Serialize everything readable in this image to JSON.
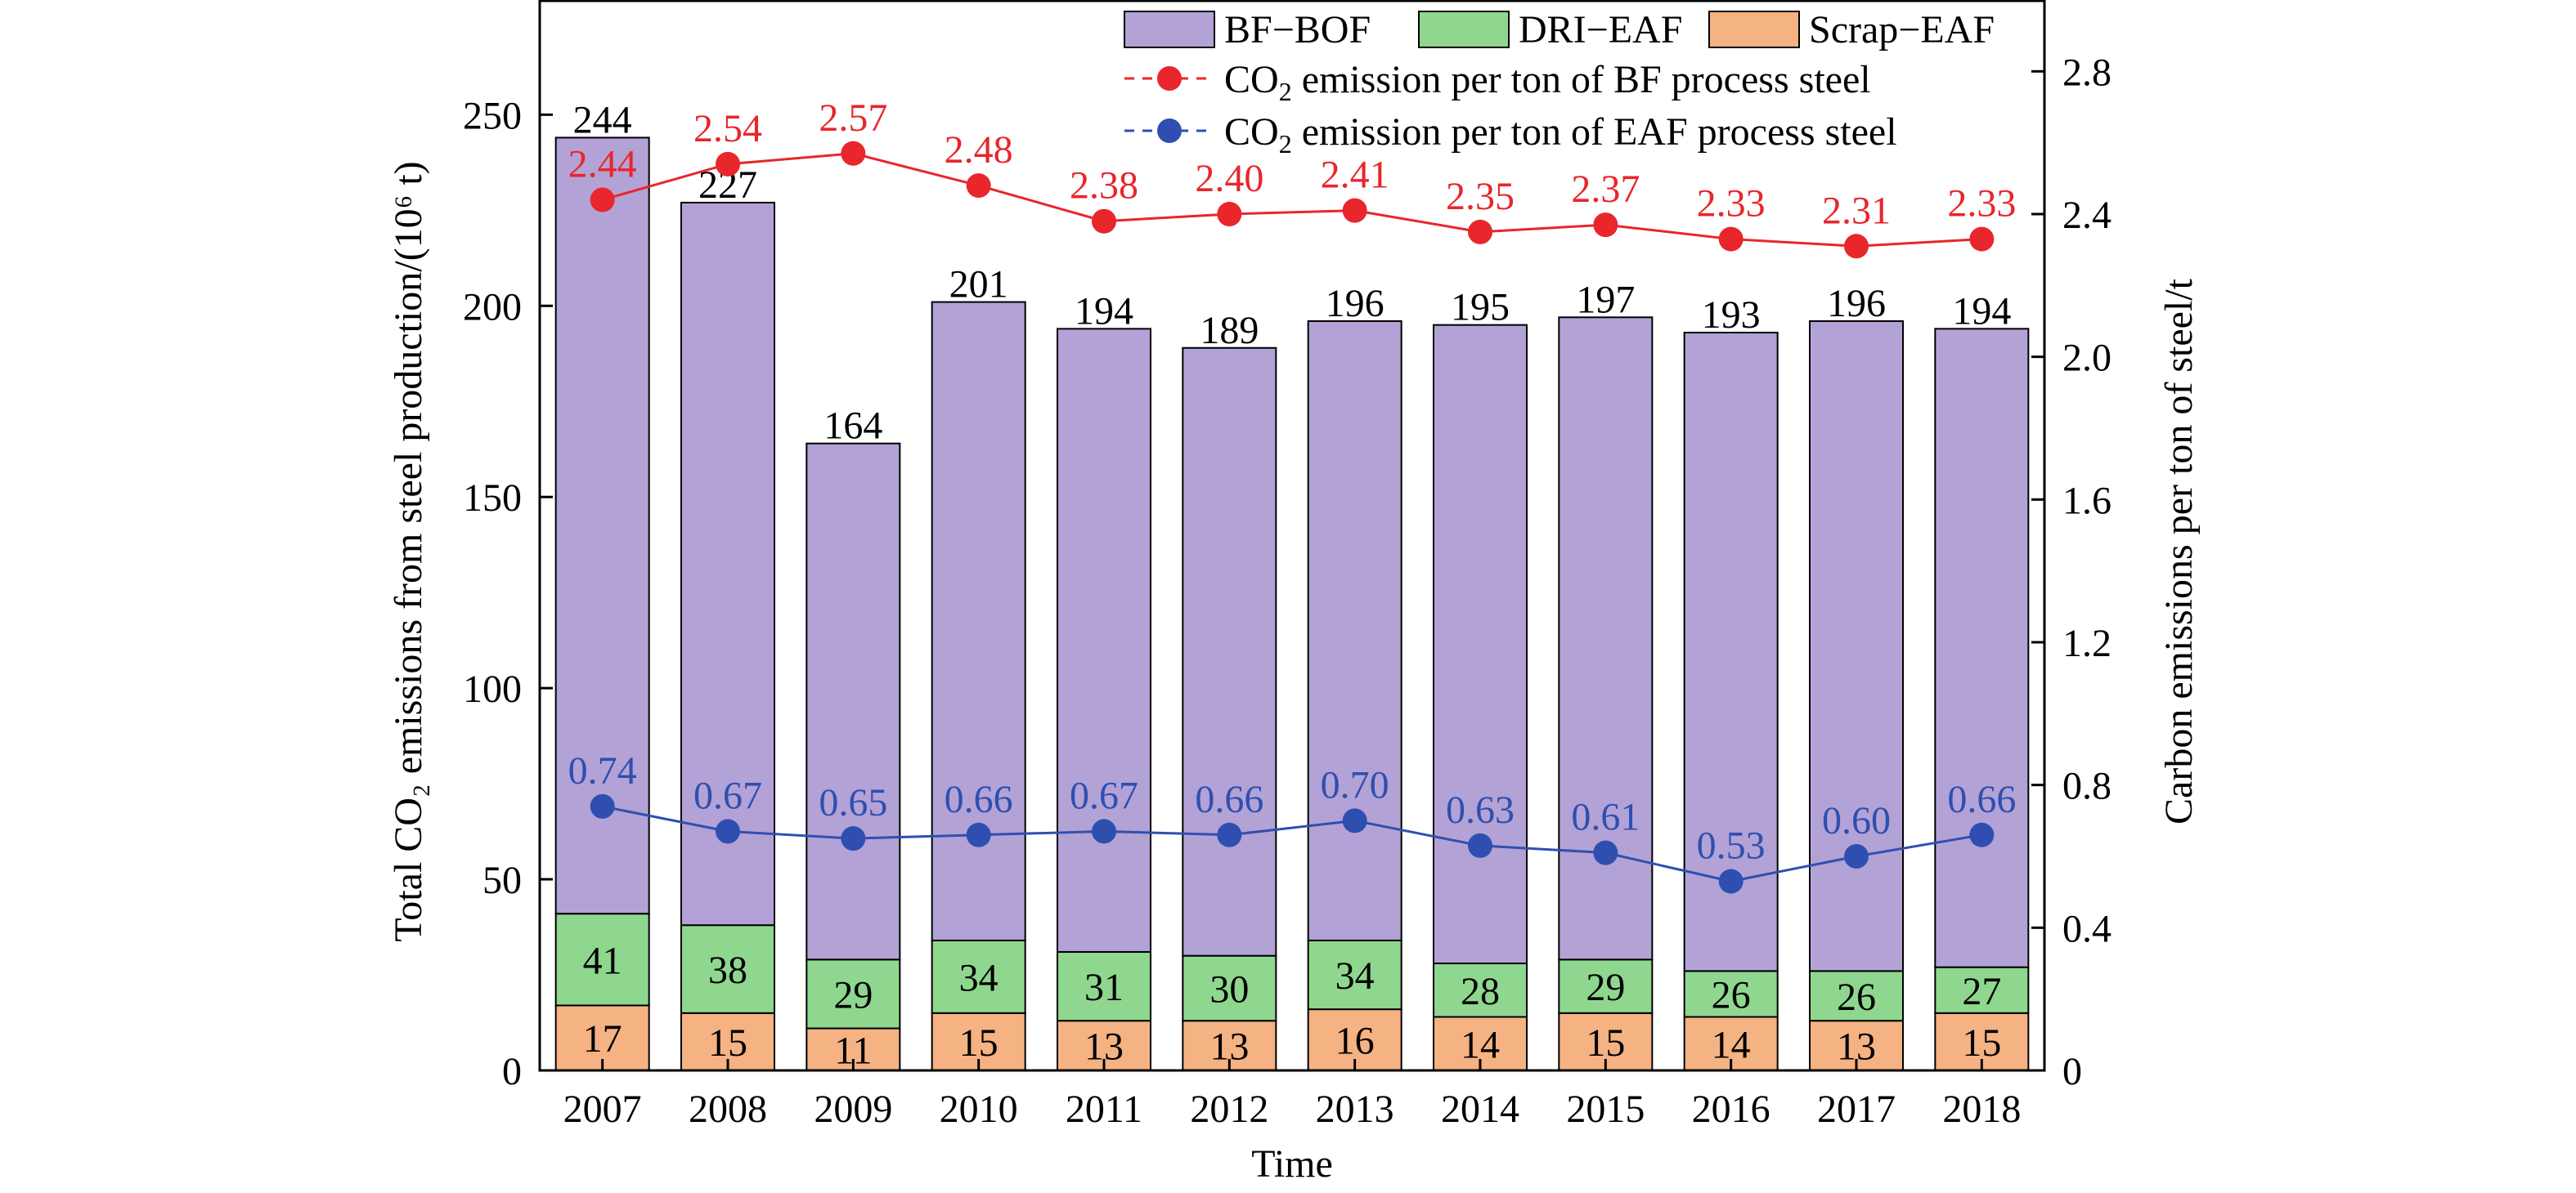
{
  "chart_data": {
    "type": "bar",
    "stacked": true,
    "categories": [
      "2007",
      "2008",
      "2009",
      "2010",
      "2011",
      "2012",
      "2013",
      "2014",
      "2015",
      "2016",
      "2017",
      "2018"
    ],
    "xlabel": "Time",
    "ylabel_left": "Total CO₂ emissions from steel production/(10⁶ t)",
    "ylabel_right": "Carbon emissions per ton of steel/t",
    "ylim_left": [
      0,
      280
    ],
    "ylim_right": [
      0,
      3.0
    ],
    "yticks_left": [
      "0",
      "50",
      "100",
      "150",
      "200",
      "250"
    ],
    "yticks_right": [
      "0",
      "0.4",
      "0.8",
      "1.2",
      "1.6",
      "2.0",
      "2.4",
      "2.8"
    ],
    "colors": {
      "bf_bof": "#b3a2d6",
      "dri_eaf": "#8fd78f",
      "scrap_eaf": "#f5b283",
      "bf_line": "#e8262b",
      "eaf_line": "#2f4fb0"
    },
    "bar_series": [
      {
        "name": "Scrap−EAF",
        "values": [
          17,
          15,
          11,
          15,
          13,
          13,
          16,
          14,
          15,
          14,
          13,
          15
        ]
      },
      {
        "name": "DRI−EAF",
        "values": [
          41,
          38,
          29,
          34,
          31,
          30,
          34,
          28,
          29,
          26,
          26,
          27
        ]
      },
      {
        "name": "BF−BOF",
        "totals": [
          244,
          227,
          164,
          201,
          194,
          189,
          196,
          195,
          197,
          193,
          196,
          194
        ]
      }
    ],
    "line_series": [
      {
        "name": "emission per ton of BF process steel",
        "axis": "right",
        "values": [
          2.44,
          2.54,
          2.57,
          2.48,
          2.38,
          2.4,
          2.41,
          2.35,
          2.37,
          2.33,
          2.31,
          2.33
        ],
        "labels": [
          "2.44",
          "2.54",
          "2.57",
          "2.48",
          "2.38",
          "2.40",
          "2.41",
          "2.35",
          "2.37",
          "2.33",
          "2.31",
          "2.33"
        ]
      },
      {
        "name": "emission per ton of EAF process steel",
        "axis": "right",
        "values": [
          0.74,
          0.67,
          0.65,
          0.66,
          0.67,
          0.66,
          0.7,
          0.63,
          0.61,
          0.53,
          0.6,
          0.66
        ],
        "labels": [
          "0.74",
          "0.67",
          "0.65",
          "0.66",
          "0.67",
          "0.66",
          "0.70",
          "0.63",
          "0.61",
          "0.53",
          "0.60",
          "0.66"
        ]
      }
    ],
    "legend": {
      "placement": "top-right",
      "bar_items": [
        "BF−BOF",
        "DRI−EAF",
        "Scrap−EAF"
      ],
      "line_items": [
        {
          "prefix": "CO",
          "sub": "2",
          "suffix": " emission per ton of BF process steel"
        },
        {
          "prefix": "CO",
          "sub": "2",
          "suffix": " emission per ton of EAF process steel"
        }
      ]
    }
  }
}
